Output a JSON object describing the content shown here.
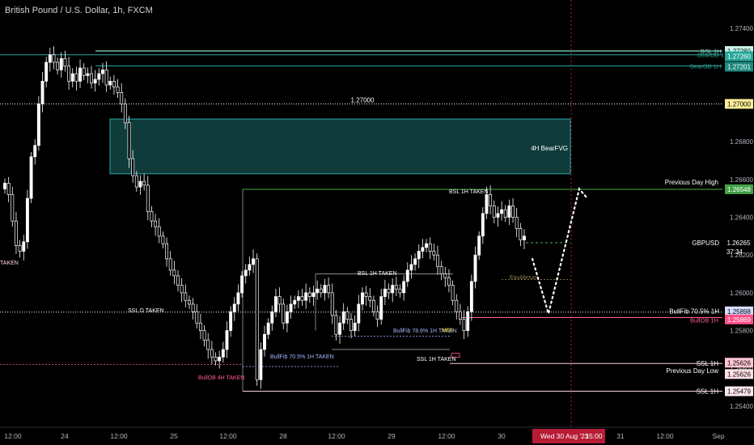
{
  "header": {
    "symbol_title": "British Pound / U.S. Dollar, 1h, FXCM"
  },
  "colors": {
    "background": "#000000",
    "candle": "#ffffff",
    "fvg_fill": "#0f3b3b",
    "fvg_border": "#2fa3a3",
    "bsl": "#7fe0c8",
    "bear_ob": "#26a69a",
    "level_1270": "#ffeb9c",
    "prev_day_high": "#4caf50",
    "bull_fib": "#a9b7ff",
    "bull_ob": "#ff5d8f",
    "ssl": "#ffd1dc",
    "prev_day_low": "#ffd6dc",
    "price": "#ffffff",
    "projection": "#ffffff",
    "date_highlight": "#b71c35"
  },
  "chart_data": {
    "type": "candlestick",
    "title": "British Pound / U.S. Dollar, 1h, FXCM",
    "xlabel": "",
    "ylabel": "",
    "ylim": [
      1.2537,
      1.2754
    ],
    "y_ticks": [
      "1.27400",
      "1.27200",
      "1.27000",
      "1.26800",
      "1.26600",
      "1.26400",
      "1.26200",
      "1.26000",
      "1.25800",
      "1.25600",
      "1.25400"
    ],
    "x_ticks": [
      "12:00",
      "24",
      "12:00",
      "25",
      "12:00",
      "28",
      "12:00",
      "29",
      "12:00",
      "30",
      "Wed 30 Aug '23",
      "15:00",
      "31",
      "12:00",
      "Sep"
    ],
    "grid": false,
    "candles_close": [
      1.2658,
      1.2652,
      1.2638,
      1.2625,
      1.2622,
      1.2627,
      1.265,
      1.2672,
      1.2678,
      1.27,
      1.2712,
      1.2722,
      1.2726,
      1.2722,
      1.2718,
      1.2724,
      1.272,
      1.2712,
      1.2716,
      1.2712,
      1.2719,
      1.2715,
      1.2716,
      1.2711,
      1.2713,
      1.2716,
      1.2718,
      1.271,
      1.2712,
      1.2709,
      1.2706,
      1.27,
      1.269,
      1.2671,
      1.2662,
      1.2656,
      1.2659,
      1.2657,
      1.2643,
      1.2638,
      1.2635,
      1.263,
      1.2626,
      1.2618,
      1.2612,
      1.2609,
      1.2604,
      1.26,
      1.2596,
      1.2594,
      1.259,
      1.2584,
      1.258,
      1.2575,
      1.257,
      1.2566,
      1.2564,
      1.2566,
      1.257,
      1.258,
      1.259,
      1.2594,
      1.26,
      1.2609,
      1.2612,
      1.2615,
      1.2618,
      1.2554,
      1.257,
      1.2578,
      1.2584,
      1.259,
      1.2598,
      1.2594,
      1.2584,
      1.259,
      1.2594,
      1.2596,
      1.2598,
      1.2596,
      1.26,
      1.2598,
      1.26,
      1.2602,
      1.26,
      1.2604,
      1.26,
      1.2588,
      1.2578,
      1.2584,
      1.259,
      1.2586,
      1.258,
      1.2584,
      1.2594,
      1.26,
      1.2598,
      1.2596,
      1.259,
      1.2586,
      1.2598,
      1.2602,
      1.26,
      1.2604,
      1.2602,
      1.26,
      1.2606,
      1.2612,
      1.2615,
      1.2618,
      1.2622,
      1.2624,
      1.2626,
      1.2622,
      1.262,
      1.2614,
      1.261,
      1.2608,
      1.2604,
      1.2596,
      1.259,
      1.2586,
      1.258,
      1.259,
      1.2606,
      1.262,
      1.263,
      1.2642,
      1.2652,
      1.2646,
      1.264,
      1.2642,
      1.2644,
      1.264,
      1.2646,
      1.264,
      1.2634,
      1.2628,
      1.263
    ],
    "current_price": 1.26265,
    "countdown": "37:34",
    "fvg_zone": {
      "label": "4H BearFVG",
      "top": 1.2692,
      "bottom": 1.2663
    },
    "projection_path": [
      [
        1.26265,
        "now"
      ],
      [
        1.2589,
        "+6h"
      ],
      [
        1.2655,
        "+10h"
      ]
    ],
    "levels": [
      {
        "name": "BSL 1H",
        "value": 1.2728,
        "price_label": "1.27280",
        "color": "#7fe0c8"
      },
      {
        "name": "BearOB 1H",
        "value": 1.2726,
        "price_label": "1.27260",
        "color": "#26a69a"
      },
      {
        "name": "BearOB 1H",
        "value": 1.27201,
        "price_label": "1.27201",
        "color": "#26a69a"
      },
      {
        "name": "1.27000",
        "value": 1.27,
        "price_label": "1.27000",
        "color": "#ffeb9c"
      },
      {
        "name": "Previous Day High",
        "value": 1.26548,
        "price_label": "1.26548",
        "color": "#4caf50"
      },
      {
        "name": "GBPUSD",
        "value": 1.26265,
        "price_label": "1.26265",
        "color": "#ffffff"
      },
      {
        "name": "BullFib 70.5% 1H",
        "value": 1.25898,
        "price_label": "1.25898",
        "color": "#a9b7ff"
      },
      {
        "name": "BullOB 1H",
        "value": 1.25869,
        "price_label": "1.25869",
        "color": "#ff5d8f"
      },
      {
        "name": "SSL 1H",
        "value": 1.25626,
        "price_label": "1.25626",
        "color": "#ffd1dc"
      },
      {
        "name": "Previous Day Low",
        "value": 1.25626,
        "price_label": "1.25626",
        "color": "#ffd6dc"
      },
      {
        "name": "SSL 1H",
        "value": 1.25479,
        "price_label": "1.25479",
        "color": "#ffd1dc"
      }
    ],
    "annotations": [
      "TAKEN",
      "SSL D TAKEN",
      "BullOB 4H TAKEN",
      "BullFib 70.5% 1H TAKEN",
      "BSL 1H TAKEN",
      "BullFib 78.6% 1H TAKEN",
      "SSL 1H TAKEN",
      "BSL 1H TAKEN",
      "MSS",
      "Equilibrium"
    ]
  }
}
